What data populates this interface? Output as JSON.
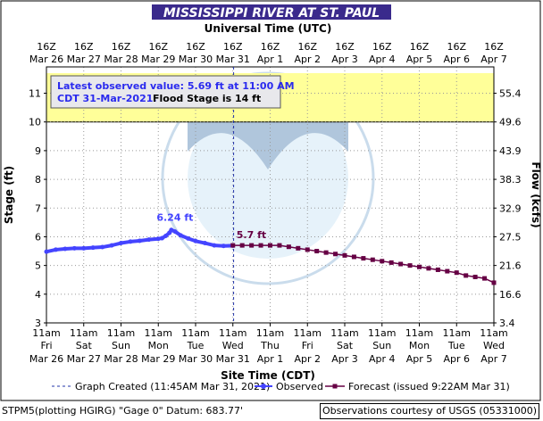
{
  "chart_data": {
    "type": "line",
    "title": "MISSISSIPPI RIVER AT ST. PAUL",
    "top_axis_title": "Universal Time (UTC)",
    "xlabel": "Site Time (CDT)",
    "ylabel_left": "Stage (ft)",
    "ylabel_right": "Flow (kcfs)",
    "ylim": [
      3,
      11.7
    ],
    "y_ticks": [
      "3",
      "4",
      "5",
      "6",
      "7",
      "8",
      "9",
      "10",
      "11"
    ],
    "right_ticks": [
      {
        "stage": 3,
        "label": "3.4"
      },
      {
        "stage": 4,
        "label": "16.6"
      },
      {
        "stage": 5,
        "label": "21.6"
      },
      {
        "stage": 6,
        "label": "27.5"
      },
      {
        "stage": 7,
        "label": "32.9"
      },
      {
        "stage": 8,
        "label": "38.3"
      },
      {
        "stage": 9,
        "label": "43.9"
      },
      {
        "stage": 10,
        "label": "49.6"
      },
      {
        "stage": 11,
        "label": "55.4"
      }
    ],
    "x_days": [
      {
        "top": "16Z",
        "top2": "Mar 26",
        "b1": "11am",
        "b2": "Fri",
        "b3": "Mar 26"
      },
      {
        "top": "16Z",
        "top2": "Mar 27",
        "b1": "11am",
        "b2": "Sat",
        "b3": "Mar 27"
      },
      {
        "top": "16Z",
        "top2": "Mar 28",
        "b1": "11am",
        "b2": "Sun",
        "b3": "Mar 28"
      },
      {
        "top": "16Z",
        "top2": "Mar 29",
        "b1": "11am",
        "b2": "Mon",
        "b3": "Mar 29"
      },
      {
        "top": "16Z",
        "top2": "Mar 30",
        "b1": "11am",
        "b2": "Tue",
        "b3": "Mar 30"
      },
      {
        "top": "16Z",
        "top2": "Mar 31",
        "b1": "11am",
        "b2": "Wed",
        "b3": "Mar 31"
      },
      {
        "top": "16Z",
        "top2": "Apr 1",
        "b1": "11am",
        "b2": "Thu",
        "b3": "Apr 1"
      },
      {
        "top": "16Z",
        "top2": "Apr 2",
        "b1": "11am",
        "b2": "Fri",
        "b3": "Apr 2"
      },
      {
        "top": "16Z",
        "top2": "Apr 3",
        "b1": "11am",
        "b2": "Sat",
        "b3": "Apr 3"
      },
      {
        "top": "16Z",
        "top2": "Apr 4",
        "b1": "11am",
        "b2": "Sun",
        "b3": "Apr 4"
      },
      {
        "top": "16Z",
        "top2": "Apr 5",
        "b1": "11am",
        "b2": "Mon",
        "b3": "Apr 5"
      },
      {
        "top": "16Z",
        "top2": "Apr 6",
        "b1": "11am",
        "b2": "Tue",
        "b3": "Apr 6"
      },
      {
        "top": "16Z",
        "top2": "Apr 7",
        "b1": "11am",
        "b2": "Wed",
        "b3": "Apr 7"
      }
    ],
    "flood_stage": 14,
    "flood_band": {
      "from": 10,
      "to": 11.7,
      "color": "#ffff99"
    },
    "graph_created_day": 5.02,
    "series": [
      {
        "name": "Observed",
        "color": "#4444ff",
        "points": [
          [
            0.0,
            5.48
          ],
          [
            0.25,
            5.55
          ],
          [
            0.5,
            5.58
          ],
          [
            0.75,
            5.6
          ],
          [
            1.0,
            5.6
          ],
          [
            1.25,
            5.62
          ],
          [
            1.5,
            5.64
          ],
          [
            1.75,
            5.7
          ],
          [
            2.0,
            5.78
          ],
          [
            2.25,
            5.83
          ],
          [
            2.5,
            5.86
          ],
          [
            2.75,
            5.9
          ],
          [
            3.0,
            5.93
          ],
          [
            3.1,
            5.95
          ],
          [
            3.2,
            6.03
          ],
          [
            3.3,
            6.14
          ],
          [
            3.35,
            6.24
          ],
          [
            3.45,
            6.18
          ],
          [
            3.6,
            6.05
          ],
          [
            3.8,
            5.94
          ],
          [
            4.0,
            5.85
          ],
          [
            4.25,
            5.78
          ],
          [
            4.5,
            5.7
          ],
          [
            4.75,
            5.68
          ],
          [
            5.0,
            5.69
          ]
        ],
        "peak_label": "6.24 ft"
      },
      {
        "name": "Forecast (issued 9:22AM Mar 31)",
        "color": "#660044",
        "start_label": "5.7 ft",
        "points": [
          [
            5.0,
            5.7
          ],
          [
            5.25,
            5.7
          ],
          [
            5.5,
            5.7
          ],
          [
            5.75,
            5.7
          ],
          [
            6.0,
            5.7
          ],
          [
            6.25,
            5.7
          ],
          [
            6.5,
            5.65
          ],
          [
            6.75,
            5.6
          ],
          [
            7.0,
            5.55
          ],
          [
            7.25,
            5.5
          ],
          [
            7.5,
            5.45
          ],
          [
            7.75,
            5.4
          ],
          [
            8.0,
            5.35
          ],
          [
            8.25,
            5.3
          ],
          [
            8.5,
            5.25
          ],
          [
            8.75,
            5.2
          ],
          [
            9.0,
            5.15
          ],
          [
            9.25,
            5.1
          ],
          [
            9.5,
            5.05
          ],
          [
            9.75,
            5.0
          ],
          [
            10.0,
            4.95
          ],
          [
            10.25,
            4.9
          ],
          [
            10.5,
            4.85
          ],
          [
            10.75,
            4.8
          ],
          [
            11.0,
            4.75
          ],
          [
            11.25,
            4.65
          ],
          [
            11.5,
            4.6
          ],
          [
            11.75,
            4.55
          ],
          [
            12.0,
            4.4
          ]
        ]
      }
    ],
    "info_box": {
      "line1": "Latest observed value: 5.69 ft at 11:00 AM",
      "line2a": "CDT 31-Mar-2021.",
      "line2b": "Flood Stage is 14 ft"
    },
    "legend": {
      "created": "Graph Created (11:45AM Mar 31, 2021)",
      "observed": "Observed",
      "forecast": "Forecast (issued 9:22AM Mar 31)"
    },
    "footer_left": "STPM5(plotting HGIRG) \"Gage 0\" Datum: 683.77'",
    "footer_right": "Observations courtesy of USGS (05331000)",
    "colors": {
      "title_bar": "#3a2a8c",
      "plot_bg": "#ffffff",
      "grid": "#999999"
    }
  }
}
